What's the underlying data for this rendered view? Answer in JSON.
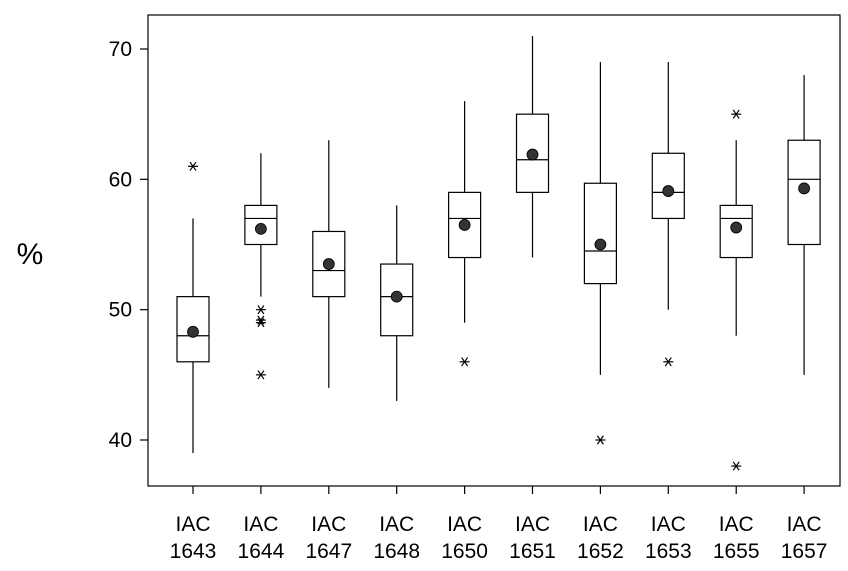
{
  "chart_data": {
    "type": "box",
    "title": "",
    "xlabel": "",
    "ylabel": "%",
    "ylim": [
      35,
      75
    ],
    "yticks": [
      40,
      50,
      60,
      70
    ],
    "grid": false,
    "categories": [
      [
        "IAC",
        "1643"
      ],
      [
        "IAC",
        "1644"
      ],
      [
        "IAC",
        "1647"
      ],
      [
        "IAC",
        "1648"
      ],
      [
        "IAC",
        "1650"
      ],
      [
        "IAC",
        "1651"
      ],
      [
        "IAC",
        "1652"
      ],
      [
        "IAC",
        "1653"
      ],
      [
        "IAC",
        "1655"
      ],
      [
        "IAC",
        "1657"
      ]
    ],
    "boxes": [
      {
        "whisker_low": 39,
        "q1": 46,
        "median": 48,
        "q3": 51,
        "whisker_high": 57,
        "mean": 48.3,
        "outliers": [
          61
        ]
      },
      {
        "whisker_low": 51,
        "q1": 55,
        "median": 57,
        "q3": 58,
        "whisker_high": 62,
        "mean": 56.2,
        "outliers": [
          50,
          49,
          49.2,
          45
        ]
      },
      {
        "whisker_low": 44,
        "q1": 51,
        "median": 53,
        "q3": 56,
        "whisker_high": 63,
        "mean": 53.5,
        "outliers": []
      },
      {
        "whisker_low": 43,
        "q1": 48,
        "median": 51,
        "q3": 53.5,
        "whisker_high": 58,
        "mean": 51,
        "outliers": []
      },
      {
        "whisker_low": 49,
        "q1": 54,
        "median": 57,
        "q3": 59,
        "whisker_high": 66,
        "mean": 56.5,
        "outliers": [
          46
        ]
      },
      {
        "whisker_low": 54,
        "q1": 59,
        "median": 61.5,
        "q3": 65,
        "whisker_high": 71,
        "mean": 61.9,
        "outliers": []
      },
      {
        "whisker_low": 45,
        "q1": 52,
        "median": 54.5,
        "q3": 59.7,
        "whisker_high": 69,
        "mean": 55,
        "outliers": [
          40
        ]
      },
      {
        "whisker_low": 50,
        "q1": 57,
        "median": 59,
        "q3": 62,
        "whisker_high": 69,
        "mean": 59.1,
        "outliers": [
          46
        ]
      },
      {
        "whisker_low": 48,
        "q1": 54,
        "median": 57,
        "q3": 58,
        "whisker_high": 63,
        "mean": 56.3,
        "outliers": [
          65,
          38
        ]
      },
      {
        "whisker_low": 45,
        "q1": 55,
        "median": 60,
        "q3": 63,
        "whisker_high": 68,
        "mean": 59.3,
        "outliers": []
      }
    ]
  }
}
